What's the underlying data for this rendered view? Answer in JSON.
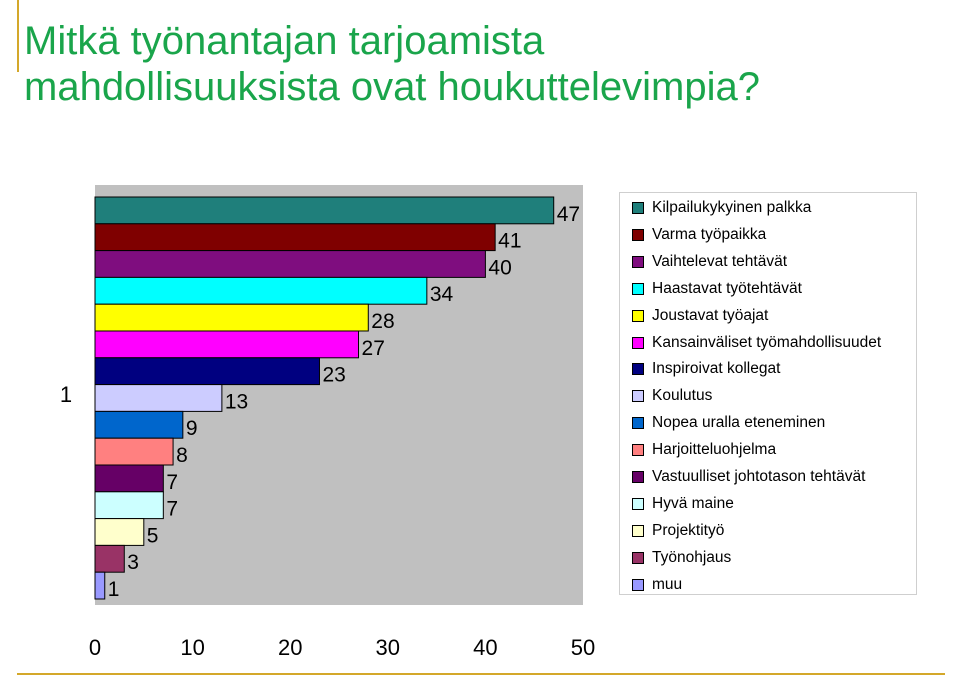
{
  "title": "Mitkä työnantajan tarjoamista\nmahdollisuuksista ovat houkuttelevimpia?",
  "chart_data": {
    "type": "bar",
    "orientation": "horizontal",
    "title": "Mitkä työnantajan tarjoamista mahdollisuuksista ovat houkuttelevimpia?",
    "categories": [
      "1"
    ],
    "xlim": [
      0,
      50
    ],
    "x_ticks": [
      0,
      10,
      20,
      30,
      40,
      50
    ],
    "grid": false,
    "legend_position": "right",
    "series": [
      {
        "name": "Kilpailukykyinen palkka",
        "value": 47,
        "color": "#1f7f7b"
      },
      {
        "name": "Varma työpaikka",
        "value": 41,
        "color": "#7f0000"
      },
      {
        "name": "Vaihtelevat tehtävät",
        "value": 40,
        "color": "#7f0d7f"
      },
      {
        "name": "Haastavat työtehtävät",
        "value": 34,
        "color": "#00ffff"
      },
      {
        "name": "Joustavat työajat",
        "value": 28,
        "color": "#ffff00"
      },
      {
        "name": "Kansainväliset työmahdollisuudet",
        "value": 27,
        "color": "#ff00ff"
      },
      {
        "name": "Inspiroivat kollegat",
        "value": 23,
        "color": "#000080"
      },
      {
        "name": "Koulutus",
        "value": 13,
        "color": "#ccccff"
      },
      {
        "name": "Nopea uralla eteneminen",
        "value": 9,
        "color": "#0066cc"
      },
      {
        "name": "Harjoitteluohjelma",
        "value": 8,
        "color": "#ff8080"
      },
      {
        "name": "Vastuulliset johtotason tehtävät",
        "value": 7,
        "color": "#660066"
      },
      {
        "name": "Hyvä maine",
        "value": 7,
        "color": "#ccffff"
      },
      {
        "name": "Projektityö",
        "value": 5,
        "color": "#ffffcc"
      },
      {
        "name": "Työnohjaus",
        "value": 3,
        "color": "#993366"
      },
      {
        "name": "muu",
        "value": 1,
        "color": "#9999ff"
      }
    ]
  }
}
